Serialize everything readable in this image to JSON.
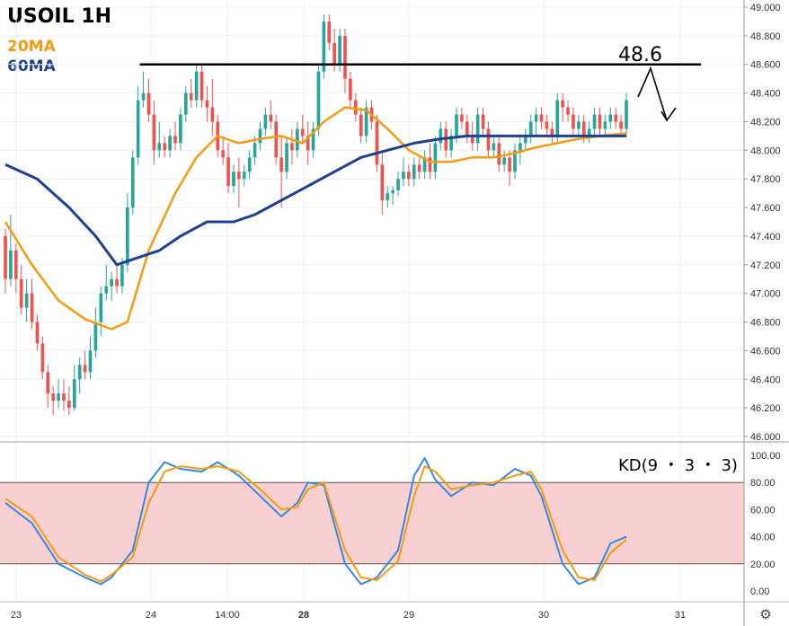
{
  "chart_data": [
    {
      "type": "candlestick",
      "title": "USOIL 1H",
      "legend": [
        {
          "name": "20MA",
          "color": "#f39c12"
        },
        {
          "name": "60MA",
          "color": "#1f3f8f"
        }
      ],
      "colors": {
        "up": "#26a69a",
        "down": "#ef5350",
        "resistance": "#000000"
      },
      "ylim": [
        46.0,
        49.0
      ],
      "y_ticks": [
        "49.000",
        "48.800",
        "48.600",
        "48.400",
        "48.200",
        "48.000",
        "47.800",
        "47.600",
        "47.400",
        "47.200",
        "47.000",
        "46.800",
        "46.600",
        "46.400",
        "46.200",
        "46.000"
      ],
      "x_ticks": [
        "23",
        "24",
        "14:00",
        "28",
        "29",
        "30",
        "31"
      ],
      "bar_count": 118,
      "candles": [
        [
          47.4,
          47.45,
          47.0,
          47.1
        ],
        [
          47.1,
          47.55,
          47.05,
          47.3
        ],
        [
          47.3,
          47.35,
          47.0,
          47.1
        ],
        [
          47.1,
          47.2,
          46.85,
          46.9
        ],
        [
          46.9,
          47.1,
          46.8,
          47.0
        ],
        [
          47.0,
          47.1,
          46.75,
          46.8
        ],
        [
          46.8,
          46.85,
          46.6,
          46.65
        ],
        [
          46.65,
          46.7,
          46.4,
          46.45
        ],
        [
          46.45,
          46.5,
          46.2,
          46.3
        ],
        [
          46.3,
          46.35,
          46.15,
          46.25
        ],
        [
          46.25,
          46.4,
          46.2,
          46.3
        ],
        [
          46.3,
          46.4,
          46.18,
          46.25
        ],
        [
          46.25,
          46.35,
          46.15,
          46.2
        ],
        [
          46.2,
          46.5,
          46.18,
          46.4
        ],
        [
          46.4,
          46.55,
          46.3,
          46.5
        ],
        [
          46.5,
          46.6,
          46.4,
          46.45
        ],
        [
          46.45,
          46.7,
          46.4,
          46.6
        ],
        [
          46.6,
          46.9,
          46.55,
          46.8
        ],
        [
          46.8,
          47.05,
          46.7,
          47.0
        ],
        [
          47.0,
          47.2,
          46.95,
          47.05
        ],
        [
          47.05,
          47.15,
          46.95,
          47.1
        ],
        [
          47.1,
          47.2,
          47.0,
          47.05
        ],
        [
          47.05,
          47.25,
          47.0,
          47.2
        ],
        [
          47.2,
          47.7,
          47.15,
          47.6
        ],
        [
          47.6,
          48.0,
          47.55,
          47.95
        ],
        [
          47.95,
          48.45,
          47.9,
          48.35
        ],
        [
          48.35,
          48.55,
          48.3,
          48.4
        ],
        [
          48.4,
          48.5,
          48.2,
          48.25
        ],
        [
          48.25,
          48.35,
          47.9,
          48.0
        ],
        [
          48.0,
          48.2,
          47.95,
          48.05
        ],
        [
          48.05,
          48.1,
          47.95,
          48.0
        ],
        [
          48.0,
          48.15,
          47.95,
          48.1
        ],
        [
          48.1,
          48.2,
          48.0,
          48.05
        ],
        [
          48.05,
          48.3,
          48.0,
          48.25
        ],
        [
          48.25,
          48.45,
          48.2,
          48.4
        ],
        [
          48.4,
          48.5,
          48.3,
          48.35
        ],
        [
          48.35,
          48.6,
          48.3,
          48.55
        ],
        [
          48.55,
          48.6,
          48.3,
          48.35
        ],
        [
          48.35,
          48.45,
          48.2,
          48.3
        ],
        [
          48.3,
          48.5,
          48.1,
          48.2
        ],
        [
          48.2,
          48.25,
          47.95,
          48.0
        ],
        [
          48.0,
          48.1,
          47.9,
          47.95
        ],
        [
          47.95,
          48.05,
          47.7,
          47.75
        ],
        [
          47.75,
          47.9,
          47.7,
          47.85
        ],
        [
          47.85,
          47.95,
          47.6,
          47.8
        ],
        [
          47.8,
          47.9,
          47.75,
          47.85
        ],
        [
          47.85,
          48.0,
          47.8,
          47.95
        ],
        [
          47.95,
          48.1,
          47.9,
          48.05
        ],
        [
          48.05,
          48.2,
          48.0,
          48.15
        ],
        [
          48.15,
          48.3,
          48.1,
          48.25
        ],
        [
          48.25,
          48.35,
          48.15,
          48.2
        ],
        [
          48.2,
          48.25,
          47.9,
          47.95
        ],
        [
          47.95,
          48.1,
          47.6,
          47.85
        ],
        [
          47.85,
          48.1,
          47.8,
          48.05
        ],
        [
          48.05,
          48.15,
          47.9,
          48.0
        ],
        [
          48.0,
          48.2,
          47.95,
          48.15
        ],
        [
          48.15,
          48.25,
          48.05,
          48.1
        ],
        [
          48.1,
          48.2,
          47.9,
          48.0
        ],
        [
          48.0,
          48.2,
          47.95,
          48.15
        ],
        [
          48.15,
          48.6,
          48.1,
          48.55
        ],
        [
          48.55,
          48.95,
          48.5,
          48.9
        ],
        [
          48.9,
          48.95,
          48.7,
          48.75
        ],
        [
          48.75,
          48.85,
          48.55,
          48.6
        ],
        [
          48.6,
          48.85,
          48.55,
          48.8
        ],
        [
          48.8,
          48.85,
          48.4,
          48.5
        ],
        [
          48.5,
          48.55,
          48.3,
          48.35
        ],
        [
          48.35,
          48.4,
          48.2,
          48.25
        ],
        [
          48.25,
          48.3,
          48.05,
          48.1
        ],
        [
          48.1,
          48.35,
          48.05,
          48.3
        ],
        [
          48.3,
          48.35,
          48.15,
          48.2
        ],
        [
          48.2,
          48.25,
          47.85,
          47.9
        ],
        [
          47.9,
          48.0,
          47.55,
          47.65
        ],
        [
          47.65,
          47.75,
          47.6,
          47.7
        ],
        [
          47.7,
          47.75,
          47.62,
          47.72
        ],
        [
          47.72,
          47.85,
          47.68,
          47.8
        ],
        [
          47.8,
          47.95,
          47.75,
          47.85
        ],
        [
          47.85,
          47.9,
          47.75,
          47.8
        ],
        [
          47.8,
          47.95,
          47.75,
          47.9
        ],
        [
          47.9,
          47.95,
          47.8,
          47.85
        ],
        [
          47.85,
          48.0,
          47.8,
          47.95
        ],
        [
          47.95,
          48.05,
          47.8,
          47.85
        ],
        [
          47.85,
          48.1,
          47.8,
          48.05
        ],
        [
          48.05,
          48.2,
          48.0,
          48.15
        ],
        [
          48.15,
          48.2,
          47.95,
          48.0
        ],
        [
          48.0,
          48.15,
          47.95,
          48.1
        ],
        [
          48.1,
          48.3,
          48.05,
          48.25
        ],
        [
          48.25,
          48.3,
          48.15,
          48.2
        ],
        [
          48.2,
          48.25,
          48.05,
          48.1
        ],
        [
          48.1,
          48.2,
          48.0,
          48.05
        ],
        [
          48.05,
          48.3,
          48.0,
          48.25
        ],
        [
          48.25,
          48.3,
          48.1,
          48.15
        ],
        [
          48.15,
          48.2,
          47.95,
          48.0
        ],
        [
          48.0,
          48.1,
          47.95,
          48.05
        ],
        [
          48.05,
          48.1,
          47.85,
          47.9
        ],
        [
          47.9,
          48.0,
          47.85,
          47.95
        ],
        [
          47.95,
          48.0,
          47.75,
          47.85
        ],
        [
          47.85,
          48.05,
          47.8,
          48.0
        ],
        [
          48.0,
          48.1,
          47.9,
          48.05
        ],
        [
          48.05,
          48.15,
          48.0,
          48.1
        ],
        [
          48.1,
          48.25,
          48.05,
          48.2
        ],
        [
          48.2,
          48.3,
          48.1,
          48.25
        ],
        [
          48.25,
          48.3,
          48.15,
          48.2
        ],
        [
          48.2,
          48.25,
          48.1,
          48.15
        ],
        [
          48.15,
          48.2,
          48.05,
          48.1
        ],
        [
          48.1,
          48.4,
          48.05,
          48.35
        ],
        [
          48.35,
          48.4,
          48.2,
          48.3
        ],
        [
          48.3,
          48.35,
          48.2,
          48.25
        ],
        [
          48.25,
          48.3,
          48.1,
          48.15
        ],
        [
          48.15,
          48.25,
          48.1,
          48.2
        ],
        [
          48.2,
          48.25,
          48.05,
          48.1
        ],
        [
          48.1,
          48.2,
          48.05,
          48.15
        ],
        [
          48.15,
          48.3,
          48.1,
          48.25
        ],
        [
          48.25,
          48.3,
          48.1,
          48.15
        ],
        [
          48.15,
          48.25,
          48.1,
          48.2
        ],
        [
          48.2,
          48.3,
          48.15,
          48.25
        ],
        [
          48.25,
          48.3,
          48.15,
          48.2
        ],
        [
          48.2,
          48.25,
          48.1,
          48.15
        ],
        [
          48.15,
          48.4,
          48.1,
          48.35
        ]
      ],
      "ma20": [
        [
          0,
          47.5
        ],
        [
          5,
          47.2
        ],
        [
          10,
          46.95
        ],
        [
          15,
          46.82
        ],
        [
          20,
          46.75
        ],
        [
          23,
          46.8
        ],
        [
          27,
          47.3
        ],
        [
          32,
          47.7
        ],
        [
          36,
          47.95
        ],
        [
          40,
          48.1
        ],
        [
          44,
          48.05
        ],
        [
          48,
          48.08
        ],
        [
          52,
          48.1
        ],
        [
          56,
          48.05
        ],
        [
          60,
          48.2
        ],
        [
          64,
          48.3
        ],
        [
          68,
          48.28
        ],
        [
          72,
          48.15
        ],
        [
          76,
          48.0
        ],
        [
          80,
          47.92
        ],
        [
          84,
          47.92
        ],
        [
          88,
          47.95
        ],
        [
          92,
          47.95
        ],
        [
          96,
          47.98
        ],
        [
          100,
          48.02
        ],
        [
          104,
          48.05
        ],
        [
          108,
          48.08
        ],
        [
          112,
          48.1
        ],
        [
          117,
          48.12
        ]
      ],
      "ma60": [
        [
          0,
          47.9
        ],
        [
          6,
          47.8
        ],
        [
          12,
          47.6
        ],
        [
          17,
          47.4
        ],
        [
          21,
          47.2
        ],
        [
          25,
          47.25
        ],
        [
          29,
          47.3
        ],
        [
          33,
          47.4
        ],
        [
          38,
          47.5
        ],
        [
          43,
          47.5
        ],
        [
          47,
          47.55
        ],
        [
          52,
          47.65
        ],
        [
          57,
          47.75
        ],
        [
          62,
          47.85
        ],
        [
          67,
          47.95
        ],
        [
          72,
          48.0
        ],
        [
          77,
          48.05
        ],
        [
          82,
          48.08
        ],
        [
          87,
          48.1
        ],
        [
          92,
          48.1
        ],
        [
          97,
          48.1
        ],
        [
          102,
          48.1
        ],
        [
          107,
          48.1
        ],
        [
          112,
          48.1
        ],
        [
          117,
          48.1
        ]
      ],
      "resistance": {
        "value": 48.6,
        "label": "48.6",
        "from_bar": 26
      }
    },
    {
      "type": "line",
      "title": "KD(9 ・ 3 ・ 3)",
      "ylim": [
        0,
        100
      ],
      "y_ticks": [
        "100.00",
        "80.00",
        "60.00",
        "40.00",
        "20.00",
        "0.00"
      ],
      "band": [
        20,
        80
      ],
      "series": [
        {
          "color": "#3a87e0",
          "values": [
            [
              0,
              65
            ],
            [
              5,
              50
            ],
            [
              10,
              20
            ],
            [
              15,
              10
            ],
            [
              18,
              5
            ],
            [
              20,
              10
            ],
            [
              24,
              30
            ],
            [
              27,
              80
            ],
            [
              30,
              95
            ],
            [
              33,
              90
            ],
            [
              37,
              88
            ],
            [
              40,
              95
            ],
            [
              44,
              85
            ],
            [
              48,
              70
            ],
            [
              52,
              55
            ],
            [
              55,
              65
            ],
            [
              57,
              80
            ],
            [
              60,
              78
            ],
            [
              64,
              20
            ],
            [
              67,
              5
            ],
            [
              70,
              10
            ],
            [
              74,
              30
            ],
            [
              77,
              85
            ],
            [
              79,
              98
            ],
            [
              81,
              82
            ],
            [
              84,
              70
            ],
            [
              88,
              80
            ],
            [
              92,
              78
            ],
            [
              96,
              90
            ],
            [
              99,
              85
            ],
            [
              101,
              70
            ],
            [
              105,
              20
            ],
            [
              108,
              5
            ],
            [
              111,
              10
            ],
            [
              114,
              35
            ],
            [
              117,
              40
            ]
          ]
        },
        {
          "color": "#f39c12",
          "values": [
            [
              0,
              68
            ],
            [
              5,
              55
            ],
            [
              10,
              25
            ],
            [
              15,
              12
            ],
            [
              18,
              7
            ],
            [
              20,
              12
            ],
            [
              24,
              25
            ],
            [
              27,
              65
            ],
            [
              30,
              88
            ],
            [
              33,
              92
            ],
            [
              37,
              90
            ],
            [
              40,
              92
            ],
            [
              44,
              88
            ],
            [
              48,
              75
            ],
            [
              52,
              60
            ],
            [
              55,
              62
            ],
            [
              57,
              75
            ],
            [
              60,
              80
            ],
            [
              64,
              30
            ],
            [
              67,
              10
            ],
            [
              70,
              8
            ],
            [
              74,
              22
            ],
            [
              77,
              70
            ],
            [
              79,
              92
            ],
            [
              81,
              88
            ],
            [
              84,
              75
            ],
            [
              88,
              78
            ],
            [
              92,
              80
            ],
            [
              96,
              85
            ],
            [
              99,
              88
            ],
            [
              101,
              75
            ],
            [
              105,
              30
            ],
            [
              108,
              10
            ],
            [
              111,
              8
            ],
            [
              114,
              28
            ],
            [
              117,
              38
            ]
          ]
        }
      ]
    }
  ]
}
